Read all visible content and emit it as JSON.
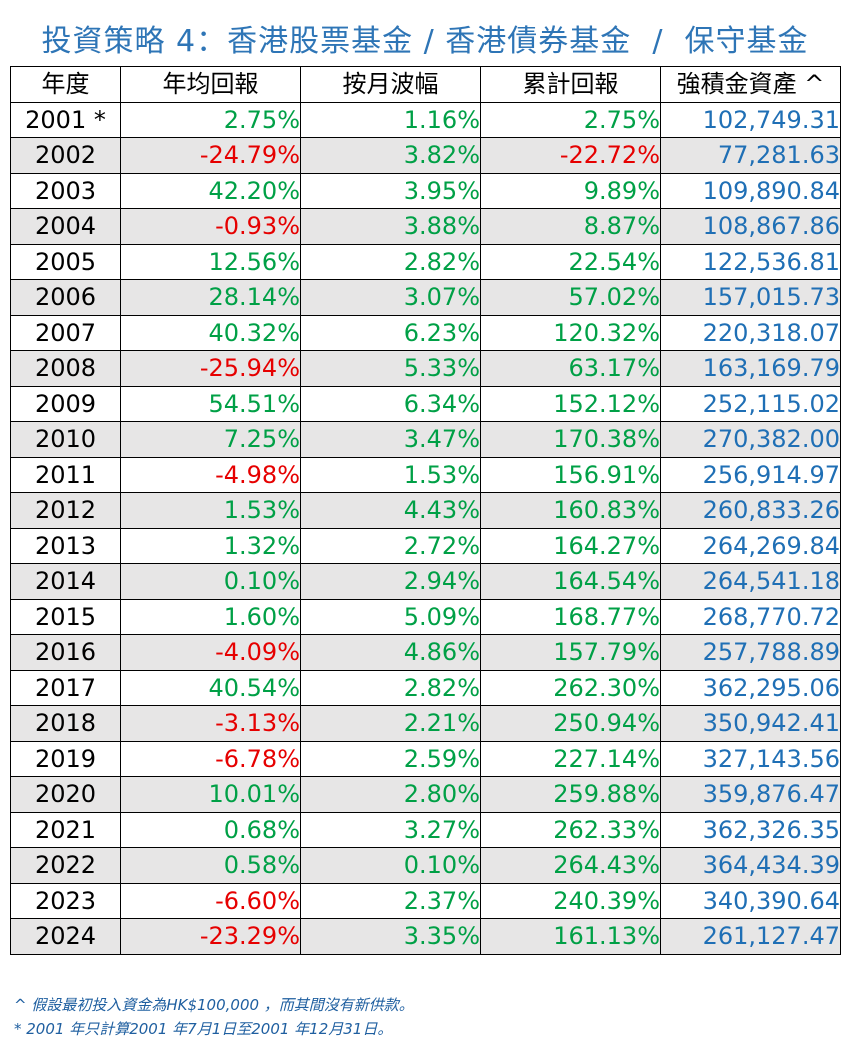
{
  "title": "投資策略 4：香港股票基金 / 香港債券基金  /  保守基金",
  "colors": {
    "title": "#2e75b6",
    "positive": "#00a046",
    "negative": "#e60000",
    "asset": "#1f6fb5",
    "stripe": "#e7e6e6"
  },
  "table": {
    "headers": [
      "年度",
      "年均回報",
      "按月波幅",
      "累計回報",
      "強積金資產 ^"
    ],
    "rows": [
      {
        "year": "2001 *",
        "annual": "2.75%",
        "vol": "1.16%",
        "cum": "2.75%",
        "asset": "102,749.31"
      },
      {
        "year": "2002",
        "annual": "-24.79%",
        "vol": "3.82%",
        "cum": "-22.72%",
        "asset": "77,281.63"
      },
      {
        "year": "2003",
        "annual": "42.20%",
        "vol": "3.95%",
        "cum": "9.89%",
        "asset": "109,890.84"
      },
      {
        "year": "2004",
        "annual": "-0.93%",
        "vol": "3.88%",
        "cum": "8.87%",
        "asset": "108,867.86"
      },
      {
        "year": "2005",
        "annual": "12.56%",
        "vol": "2.82%",
        "cum": "22.54%",
        "asset": "122,536.81"
      },
      {
        "year": "2006",
        "annual": "28.14%",
        "vol": "3.07%",
        "cum": "57.02%",
        "asset": "157,015.73"
      },
      {
        "year": "2007",
        "annual": "40.32%",
        "vol": "6.23%",
        "cum": "120.32%",
        "asset": "220,318.07"
      },
      {
        "year": "2008",
        "annual": "-25.94%",
        "vol": "5.33%",
        "cum": "63.17%",
        "asset": "163,169.79"
      },
      {
        "year": "2009",
        "annual": "54.51%",
        "vol": "6.34%",
        "cum": "152.12%",
        "asset": "252,115.02"
      },
      {
        "year": "2010",
        "annual": "7.25%",
        "vol": "3.47%",
        "cum": "170.38%",
        "asset": "270,382.00"
      },
      {
        "year": "2011",
        "annual": "-4.98%",
        "vol": "1.53%",
        "cum": "156.91%",
        "asset": "256,914.97"
      },
      {
        "year": "2012",
        "annual": "1.53%",
        "vol": "4.43%",
        "cum": "160.83%",
        "asset": "260,833.26"
      },
      {
        "year": "2013",
        "annual": "1.32%",
        "vol": "2.72%",
        "cum": "164.27%",
        "asset": "264,269.84"
      },
      {
        "year": "2014",
        "annual": "0.10%",
        "vol": "2.94%",
        "cum": "164.54%",
        "asset": "264,541.18"
      },
      {
        "year": "2015",
        "annual": "1.60%",
        "vol": "5.09%",
        "cum": "168.77%",
        "asset": "268,770.72"
      },
      {
        "year": "2016",
        "annual": "-4.09%",
        "vol": "4.86%",
        "cum": "157.79%",
        "asset": "257,788.89"
      },
      {
        "year": "2017",
        "annual": "40.54%",
        "vol": "2.82%",
        "cum": "262.30%",
        "asset": "362,295.06"
      },
      {
        "year": "2018",
        "annual": "-3.13%",
        "vol": "2.21%",
        "cum": "250.94%",
        "asset": "350,942.41"
      },
      {
        "year": "2019",
        "annual": "-6.78%",
        "vol": "2.59%",
        "cum": "227.14%",
        "asset": "327,143.56"
      },
      {
        "year": "2020",
        "annual": "10.01%",
        "vol": "2.80%",
        "cum": "259.88%",
        "asset": "359,876.47"
      },
      {
        "year": "2021",
        "annual": "0.68%",
        "vol": "3.27%",
        "cum": "262.33%",
        "asset": "362,326.35"
      },
      {
        "year": "2022",
        "annual": "0.58%",
        "vol": "0.10%",
        "cum": "264.43%",
        "asset": "364,434.39"
      },
      {
        "year": "2023",
        "annual": "-6.60%",
        "vol": "2.37%",
        "cum": "240.39%",
        "asset": "340,390.64"
      },
      {
        "year": "2024",
        "annual": "-23.29%",
        "vol": "3.35%",
        "cum": "161.13%",
        "asset": "261,127.47"
      }
    ]
  },
  "notes": [
    "^ 假設最初投入資金為HK$100,000  ，而其間沒有新供款。",
    "* 2001 年只計算2001 年7月1日至2001 年12月31日。"
  ]
}
